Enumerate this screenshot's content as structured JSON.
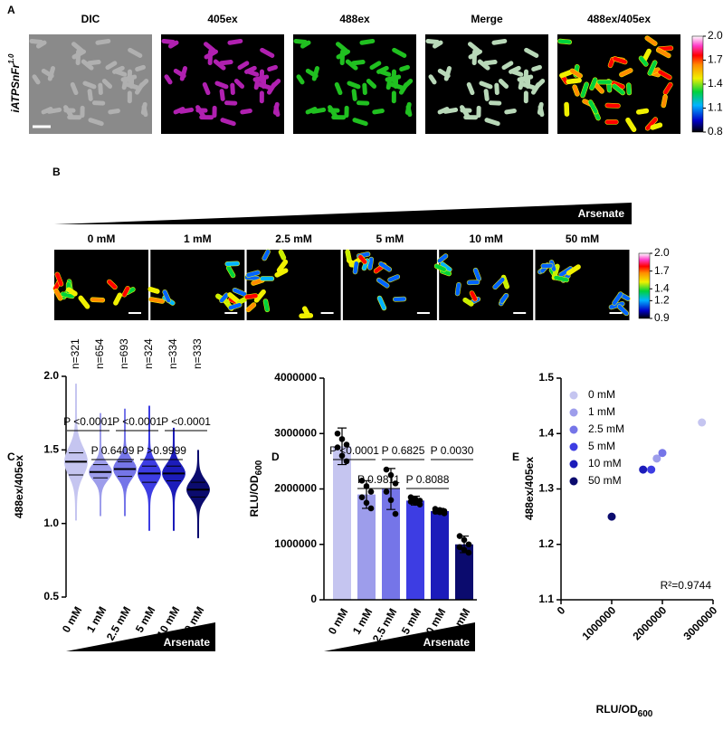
{
  "panel_a": {
    "label": "A",
    "row_label": "iATPSnFr",
    "row_label_sup": "1.0",
    "columns": [
      "DIC",
      "405ex",
      "488ex",
      "Merge",
      "488ex/405ex"
    ],
    "colorbar_ticks": [
      {
        "value": 2,
        "label": "2.0"
      },
      {
        "value": 1.7,
        "label": "1.7"
      },
      {
        "value": 1.4,
        "label": "1.4"
      },
      {
        "value": 1.1,
        "label": "1.1"
      },
      {
        "value": 0.8,
        "label": "0.8"
      }
    ]
  },
  "panel_b": {
    "label": "B",
    "gradient_label": "Arsenate",
    "columns": [
      "0 mM",
      "1 mM",
      "2.5 mM",
      "5 mM",
      "10 mM",
      "50 mM"
    ],
    "colorbar_ticks": [
      {
        "value": 2,
        "label": "2.0"
      },
      {
        "value": 1.7,
        "label": "1.7"
      },
      {
        "value": 1.4,
        "label": "1.4"
      },
      {
        "value": 1.2,
        "label": "1.2"
      },
      {
        "value": 0.9,
        "label": "0.9"
      }
    ]
  },
  "chart_data": [
    {
      "type": "violin",
      "panel": "C",
      "ylabel": "488ex/405ex",
      "categories": [
        "0 mM",
        "1 mM",
        "2.5 mM",
        "5 mM",
        "10 mM",
        "50 mM"
      ],
      "n_labels": [
        "n=321",
        "n=654",
        "n=693",
        "n=324",
        "n=334",
        "n=333"
      ],
      "medians": [
        1.42,
        1.35,
        1.37,
        1.34,
        1.34,
        1.23
      ],
      "q1": [
        1.33,
        1.31,
        1.32,
        1.28,
        1.29,
        1.18
      ],
      "q3": [
        1.48,
        1.4,
        1.42,
        1.39,
        1.39,
        1.28
      ],
      "min": [
        1.02,
        1.05,
        1.05,
        0.95,
        0.95,
        0.9
      ],
      "max": [
        1.95,
        1.75,
        1.78,
        1.8,
        1.65,
        1.5
      ],
      "colors": [
        "#c5c5f0",
        "#9d9deb",
        "#7575e8",
        "#3d3de3",
        "#1c1cba",
        "#0b0b6e"
      ],
      "ylim": [
        0.5,
        2
      ],
      "yticks": [
        {
          "value": 0.5,
          "label": "0.5"
        },
        {
          "value": 1,
          "label": "1.0"
        },
        {
          "value": 1.5,
          "label": "1.5"
        },
        {
          "value": 2,
          "label": "2.0"
        }
      ],
      "comparisons": [
        "P <0.0001",
        "P 0.6409",
        "P <0.0001",
        "P >0.9999",
        "P <0.0001"
      ],
      "gradient_label": "Arsenate"
    },
    {
      "type": "bar",
      "panel": "D",
      "ylabel": "RLU/OD",
      "ylabel_sub": "600",
      "categories": [
        "0 mM",
        "1 mM",
        "2.5 mM",
        "5 mM",
        "10 mM",
        "50 mM"
      ],
      "values": [
        2770000,
        1900000,
        2000000,
        1790000,
        1600000,
        1000000
      ],
      "errors": [
        330000,
        250000,
        370000,
        80000,
        50000,
        150000
      ],
      "points": [
        [
          3000000,
          2900000,
          2800000,
          2750000,
          2600000,
          2500000
        ],
        [
          2150000,
          2050000,
          1950000,
          1850000,
          1750000,
          1650000
        ],
        [
          2350000,
          2250000,
          2100000,
          1950000,
          1800000,
          1550000
        ],
        [
          1850000,
          1820000,
          1790000,
          1770000,
          1750000,
          1720000
        ],
        [
          1640000,
          1620000,
          1600000,
          1590000,
          1580000,
          1560000
        ],
        [
          1150000,
          1080000,
          1000000,
          950000,
          900000,
          850000
        ]
      ],
      "colors": [
        "#c5c5f0",
        "#9d9deb",
        "#7575e8",
        "#3d3de3",
        "#1c1cba",
        "#0b0b6e"
      ],
      "ylim": [
        0,
        4000000
      ],
      "yticks": [
        0,
        1000000,
        2000000,
        3000000,
        4000000
      ],
      "comparisons": [
        "P <0.0001",
        "P 0.9811",
        "P 0.6825",
        "P 0.8088",
        "P 0.0030"
      ],
      "gradient_label": "Arsenate"
    },
    {
      "type": "scatter",
      "panel": "E",
      "xlabel": "RLU/OD",
      "xlabel_sub": "600",
      "ylabel": "488ex/405ex",
      "series": [
        {
          "name": "0 mM",
          "color": "#c5c5f0",
          "x": 2780000,
          "y": 1.42
        },
        {
          "name": "1 mM",
          "color": "#9d9deb",
          "x": 1890000,
          "y": 1.355
        },
        {
          "name": "2.5 mM",
          "color": "#7575e8",
          "x": 2000000,
          "y": 1.365
        },
        {
          "name": "5 mM",
          "color": "#3d3de3",
          "x": 1780000,
          "y": 1.335
        },
        {
          "name": "10 mM",
          "color": "#1c1cba",
          "x": 1620000,
          "y": 1.335
        },
        {
          "name": "50 mM",
          "color": "#0b0b6e",
          "x": 1000000,
          "y": 1.25
        }
      ],
      "xlim": [
        0,
        3000000
      ],
      "xticks": [
        0,
        1000000,
        2000000,
        3000000
      ],
      "ylim": [
        1.1,
        1.5
      ],
      "yticks": [
        {
          "value": 1.1,
          "label": "1.1"
        },
        {
          "value": 1.2,
          "label": "1.2"
        },
        {
          "value": 1.3,
          "label": "1.3"
        },
        {
          "value": 1.4,
          "label": "1.4"
        },
        {
          "value": 1.5,
          "label": "1.5"
        }
      ],
      "annotation": "R²=0.9744"
    }
  ]
}
